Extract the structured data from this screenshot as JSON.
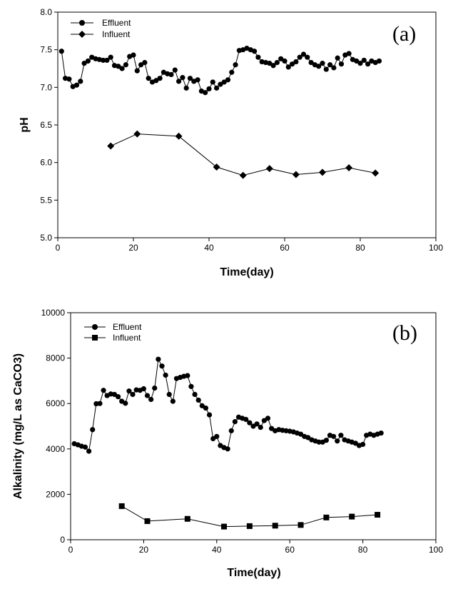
{
  "chart_data": [
    {
      "type": "line",
      "panel_label": "(a)",
      "xlabel": "Time(day)",
      "ylabel": "pH",
      "xlim": [
        0,
        100
      ],
      "ylim": [
        5.0,
        8.0
      ],
      "xticks": [
        "0",
        "20",
        "40",
        "60",
        "80",
        "100"
      ],
      "yticks": [
        "5.0",
        "5.5",
        "6.0",
        "6.5",
        "7.0",
        "7.5",
        "8.0"
      ],
      "legend_position": "top-left",
      "grid": false,
      "series": [
        {
          "name": "Effluent",
          "marker": "circle",
          "x": [
            1,
            2,
            3,
            4,
            5,
            6,
            7,
            8,
            9,
            10,
            11,
            12,
            13,
            14,
            15,
            16,
            17,
            18,
            19,
            20,
            21,
            22,
            23,
            24,
            25,
            26,
            27,
            28,
            29,
            30,
            31,
            32,
            33,
            34,
            35,
            36,
            37,
            38,
            39,
            40,
            41,
            42,
            43,
            44,
            45,
            46,
            47,
            48,
            49,
            50,
            51,
            52,
            53,
            54,
            55,
            56,
            57,
            58,
            59,
            60,
            61,
            62,
            63,
            64,
            65,
            66,
            67,
            68,
            69,
            70,
            71,
            72,
            73,
            74,
            75,
            76,
            77,
            78,
            79,
            80,
            81,
            82,
            83,
            84,
            85
          ],
          "y": [
            7.48,
            7.12,
            7.11,
            7.01,
            7.03,
            7.08,
            7.32,
            7.35,
            7.4,
            7.38,
            7.37,
            7.36,
            7.36,
            7.4,
            7.29,
            7.28,
            7.25,
            7.3,
            7.41,
            7.43,
            7.22,
            7.3,
            7.33,
            7.12,
            7.07,
            7.09,
            7.12,
            7.2,
            7.18,
            7.17,
            7.23,
            7.08,
            7.13,
            6.99,
            7.12,
            7.08,
            7.1,
            6.95,
            6.93,
            6.98,
            7.07,
            6.99,
            7.04,
            7.07,
            7.1,
            7.2,
            7.3,
            7.49,
            7.5,
            7.52,
            7.5,
            7.48,
            7.4,
            7.34,
            7.33,
            7.32,
            7.29,
            7.33,
            7.38,
            7.35,
            7.27,
            7.31,
            7.34,
            7.4,
            7.44,
            7.4,
            7.33,
            7.3,
            7.28,
            7.32,
            7.24,
            7.3,
            7.26,
            7.39,
            7.31,
            7.43,
            7.45,
            7.37,
            7.35,
            7.32,
            7.36,
            7.31,
            7.35,
            7.33,
            7.35
          ]
        },
        {
          "name": "Influent",
          "marker": "diamond",
          "x": [
            14,
            21,
            32,
            42,
            49,
            56,
            63,
            70,
            77,
            84
          ],
          "y": [
            6.22,
            6.38,
            6.35,
            5.94,
            5.83,
            5.92,
            5.84,
            5.87,
            5.93,
            5.86
          ]
        }
      ]
    },
    {
      "type": "line",
      "panel_label": "(b)",
      "xlabel": "Time(day)",
      "ylabel": "Alkalinity (mg/L as CaCO3)",
      "xlim": [
        0,
        100
      ],
      "ylim": [
        0,
        10000
      ],
      "xticks": [
        "0",
        "20",
        "40",
        "60",
        "80",
        "100"
      ],
      "yticks": [
        "0",
        "2000",
        "4000",
        "6000",
        "8000",
        "10000"
      ],
      "legend_position": "top-left",
      "grid": false,
      "series": [
        {
          "name": "Effluent",
          "marker": "circle",
          "x": [
            1,
            2,
            3,
            4,
            5,
            6,
            7,
            8,
            9,
            10,
            11,
            12,
            13,
            14,
            15,
            16,
            17,
            18,
            19,
            20,
            21,
            22,
            23,
            24,
            25,
            26,
            27,
            28,
            29,
            30,
            31,
            32,
            33,
            34,
            35,
            36,
            37,
            38,
            39,
            40,
            41,
            42,
            43,
            44,
            45,
            46,
            47,
            48,
            49,
            50,
            51,
            52,
            53,
            54,
            55,
            56,
            57,
            58,
            59,
            60,
            61,
            62,
            63,
            64,
            65,
            66,
            67,
            68,
            69,
            70,
            71,
            72,
            73,
            74,
            75,
            76,
            77,
            78,
            79,
            80,
            81,
            82,
            83,
            84,
            85
          ],
          "y": [
            4230,
            4180,
            4120,
            4080,
            3900,
            4850,
            5990,
            6000,
            6580,
            6350,
            6420,
            6400,
            6300,
            6100,
            6010,
            6550,
            6400,
            6600,
            6580,
            6650,
            6350,
            6180,
            6680,
            7950,
            7650,
            7250,
            6400,
            6100,
            7100,
            7150,
            7200,
            7230,
            6750,
            6400,
            6150,
            5900,
            5800,
            5500,
            4450,
            4550,
            4150,
            4060,
            4000,
            4800,
            5200,
            5400,
            5350,
            5300,
            5150,
            5000,
            5100,
            4950,
            5250,
            5350,
            4900,
            4800,
            4850,
            4820,
            4800,
            4780,
            4750,
            4700,
            4650,
            4550,
            4500,
            4400,
            4350,
            4300,
            4300,
            4380,
            4600,
            4550,
            4350,
            4600,
            4400,
            4350,
            4300,
            4250,
            4150,
            4200,
            4600,
            4650,
            4600,
            4650,
            4700
          ]
        },
        {
          "name": "Influent",
          "marker": "square",
          "x": [
            14,
            21,
            32,
            42,
            49,
            56,
            63,
            70,
            77,
            84
          ],
          "y": [
            1480,
            820,
            920,
            580,
            600,
            620,
            650,
            980,
            1020,
            1100
          ]
        }
      ]
    }
  ]
}
